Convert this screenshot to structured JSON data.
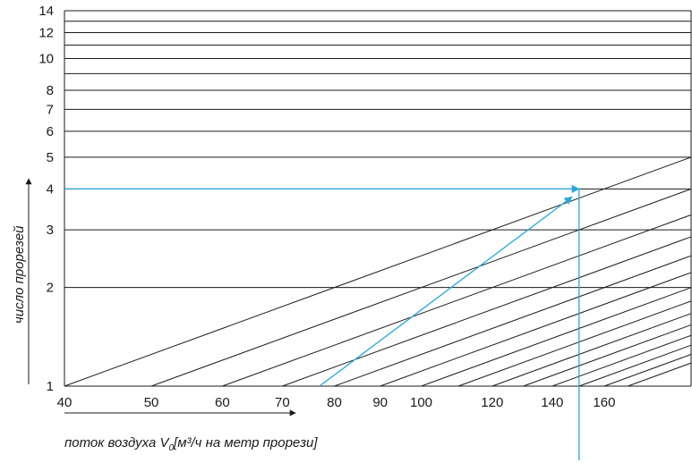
{
  "chart_data": {
    "type": "line",
    "xlabel_prefix": "поток воздуха V",
    "xlabel_sub": "0",
    "xlabel_suffix": "[м³/ч на метр прорези]",
    "ylabel": "число прорезей",
    "x_scale": "log",
    "y_scale": "log",
    "xlim": [
      40,
      200
    ],
    "ylim": [
      1,
      14
    ],
    "x_ticks": [
      40,
      50,
      60,
      70,
      80,
      90,
      100,
      120,
      140,
      160
    ],
    "y_ticks": [
      1,
      2,
      3,
      4,
      5,
      6,
      7,
      8,
      10,
      12,
      14
    ],
    "horizontal_gridlines": [
      1,
      2,
      3,
      4,
      5,
      6,
      7,
      8,
      9,
      10,
      11,
      12,
      13,
      14
    ],
    "diagonal_lines_start_x": [
      40,
      50,
      60,
      70,
      80,
      90,
      100,
      110,
      120,
      130,
      140,
      150,
      160,
      170
    ],
    "grid": true,
    "example_path": {
      "color": "#2aa6d8",
      "start": {
        "x": 77,
        "y": 1
      },
      "intersection": {
        "x": 150,
        "y": 4
      },
      "result_y": 4
    },
    "colors": {
      "grid": "#1a1a1a",
      "highlight": "#2aa6d8"
    }
  }
}
